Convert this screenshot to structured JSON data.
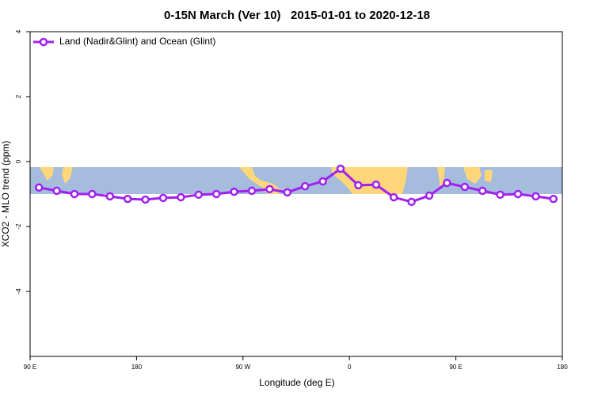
{
  "chart_data": {
    "type": "line",
    "title": "0-15N March (Ver 10)   2015-01-01 to 2020-12-18",
    "xlabel": "Longitude (deg E)",
    "ylabel": "XCO2 - MLO trend (ppm)",
    "x": [
      97.5,
      112.5,
      127.5,
      142.5,
      157.5,
      172.5,
      187.5,
      202.5,
      217.5,
      232.5,
      247.5,
      262.5,
      277.5,
      292.5,
      307.5,
      322.5,
      337.5,
      352.5,
      367.5,
      382.5,
      397.5,
      412.5,
      427.5,
      442.5,
      457.5,
      472.5,
      487.5,
      502.5,
      517.5,
      532.5
    ],
    "series": [
      {
        "name": "Land (Nadir&Glint) and Ocean (Glint)",
        "color": "#a020f0",
        "values": [
          -0.8,
          -0.9,
          -1.0,
          -1.0,
          -1.07,
          -1.15,
          -1.17,
          -1.12,
          -1.1,
          -1.02,
          -1.0,
          -0.93,
          -0.9,
          -0.85,
          -0.95,
          -0.76,
          -0.61,
          -0.22,
          -0.73,
          -0.71,
          -1.1,
          -1.24,
          -1.05,
          -0.66,
          -0.78,
          -0.9,
          -1.02,
          -1.0,
          -1.07,
          -1.15
        ]
      }
    ],
    "xlim": [
      90,
      540
    ],
    "xticks": [
      {
        "value": 90,
        "label": "90 E"
      },
      {
        "value": 180,
        "label": "180"
      },
      {
        "value": 270,
        "label": "90 W"
      },
      {
        "value": 360,
        "label": "0"
      },
      {
        "value": 450,
        "label": "90 E"
      },
      {
        "value": 540,
        "label": "180"
      }
    ],
    "ylim": [
      -6,
      4
    ],
    "yticks": [
      -4,
      -2,
      0,
      2,
      4
    ],
    "legend": "upper left"
  }
}
